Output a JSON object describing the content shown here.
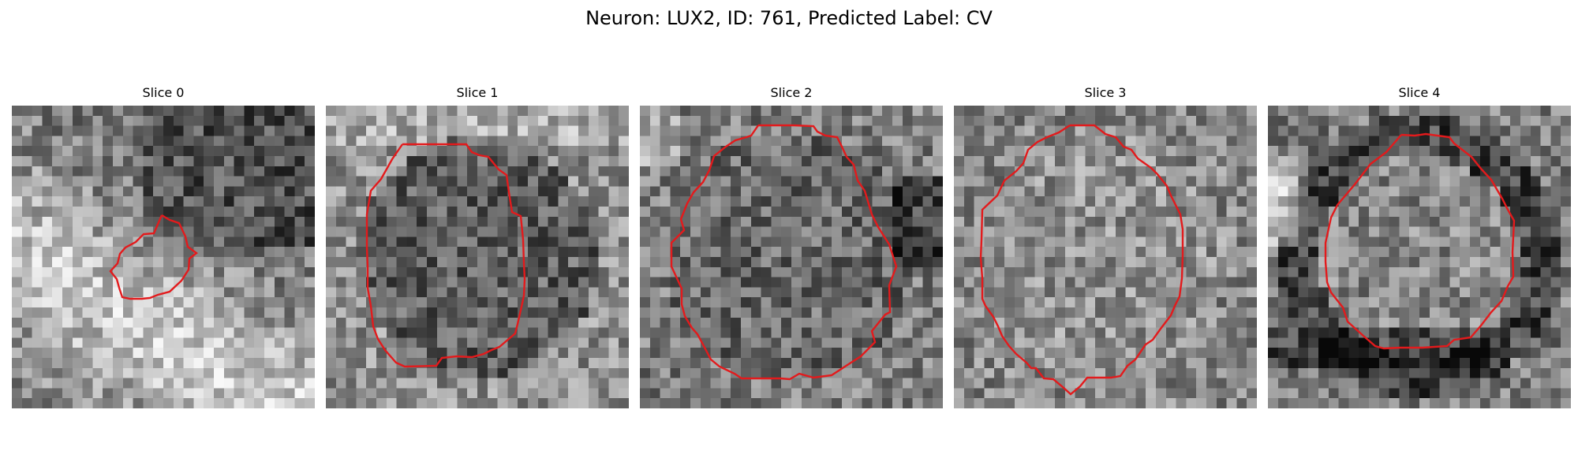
{
  "title": "Neuron: LUX2, ID: 761, Predicted Label: CV",
  "contour_color": "#e31a1c",
  "panels": [
    {
      "label": "Slice 0",
      "image": "grayscale-microscopy-slice",
      "contour": "small-irregular-cell-outline"
    },
    {
      "label": "Slice 1",
      "image": "grayscale-microscopy-slice",
      "contour": "large-polygon-cell-outline"
    },
    {
      "label": "Slice 2",
      "image": "grayscale-microscopy-slice",
      "contour": "large-polygon-cell-outline"
    },
    {
      "label": "Slice 3",
      "image": "grayscale-microscopy-slice",
      "contour": "large-polygon-cell-outline"
    },
    {
      "label": "Slice 4",
      "image": "grayscale-microscopy-slice",
      "contour": "large-polygon-cell-outline"
    }
  ]
}
